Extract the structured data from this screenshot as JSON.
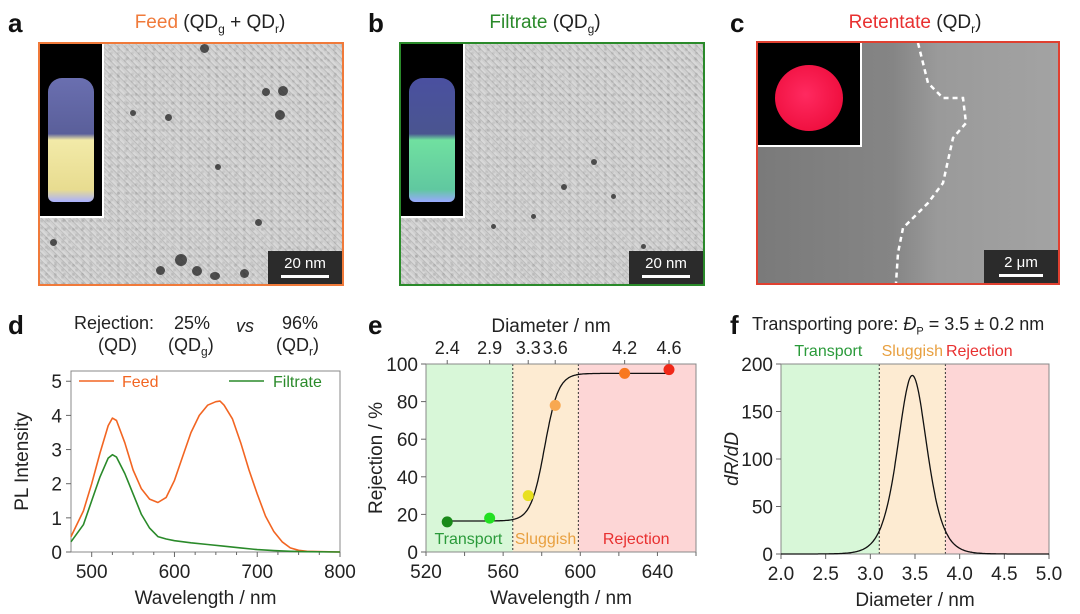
{
  "panels": {
    "a": {
      "letter": "a",
      "title_colored": "Feed",
      "title_rest_1": " (QD",
      "sub_1": "g",
      "title_rest_2": " + QD",
      "sub_2": "r",
      "title_rest_3": ")",
      "title_color": "#f07a3a",
      "frame_color": "#f07a3a",
      "scale_label": "20 nm",
      "inset": "vial-yellow"
    },
    "b": {
      "letter": "b",
      "title_colored": "Filtrate",
      "title_rest_1": " (QD",
      "sub_1": "g",
      "title_rest_3": ")",
      "title_color": "#2a8a2a",
      "frame_color": "#2a8a2a",
      "scale_label": "20 nm",
      "inset": "vial-green"
    },
    "c": {
      "letter": "c",
      "title_colored": "Retentate",
      "title_rest_1": " (QD",
      "sub_1": "r",
      "title_rest_3": ")",
      "title_color": "#e83030",
      "frame_color": "#e04030",
      "scale_label": "2 μm",
      "inset": "red-membrane"
    },
    "d": {
      "letter": "d",
      "header_row1": [
        "Rejection:",
        "25%",
        "vs",
        "96%"
      ],
      "header_row2": [
        "(QD)",
        "(QD",
        "g",
        ")",
        "(QD",
        "r",
        ")"
      ]
    },
    "e": {
      "letter": "e"
    },
    "f": {
      "letter": "f",
      "title": "Transporting pore: ",
      "title_symbol": "Đ",
      "title_sub": "P",
      "title_value": " = 3.5 ± 0.2 nm"
    }
  },
  "colors": {
    "feed": "#f26522",
    "filtrate": "#2a8a2a",
    "transport_bg": "#d8f7d8",
    "sluggish_bg": "#fdebd2",
    "rejection_bg": "#fdd6d6",
    "transport_text": "#2a9a3a",
    "sluggish_text": "#e8a040",
    "rejection_text": "#e83030"
  },
  "chart_data": [
    {
      "id": "d",
      "type": "line",
      "title": "Rejection: 25% (QDg) vs 96% (QDr)",
      "xlabel": "Wavelength / nm",
      "ylabel": "PL Intensity",
      "xlim": [
        475,
        800
      ],
      "ylim": [
        0,
        5.3
      ],
      "xticks": [
        500,
        600,
        700,
        800
      ],
      "yticks": [
        0,
        1,
        2,
        3,
        4,
        5
      ],
      "legend": "top",
      "series": [
        {
          "name": "Feed",
          "color": "#f26522",
          "x": [
            475,
            490,
            500,
            510,
            520,
            525,
            530,
            540,
            550,
            560,
            570,
            580,
            590,
            600,
            610,
            620,
            630,
            640,
            650,
            655,
            660,
            670,
            680,
            690,
            700,
            710,
            720,
            730,
            740,
            750,
            760,
            780,
            800
          ],
          "y": [
            0.45,
            1.2,
            2.0,
            2.9,
            3.7,
            3.92,
            3.85,
            3.2,
            2.4,
            1.85,
            1.55,
            1.45,
            1.6,
            2.1,
            2.8,
            3.5,
            4.0,
            4.3,
            4.4,
            4.42,
            4.3,
            3.9,
            3.2,
            2.4,
            1.7,
            1.05,
            0.6,
            0.3,
            0.12,
            0.05,
            0.02,
            0.01,
            0.0
          ]
        },
        {
          "name": "Filtrate",
          "color": "#2a8a2a",
          "x": [
            475,
            490,
            500,
            510,
            520,
            525,
            530,
            540,
            550,
            560,
            570,
            580,
            590,
            600,
            620,
            640,
            660,
            680,
            700,
            720,
            740,
            760,
            800
          ],
          "y": [
            0.3,
            0.8,
            1.5,
            2.2,
            2.75,
            2.85,
            2.78,
            2.3,
            1.7,
            1.1,
            0.7,
            0.45,
            0.38,
            0.33,
            0.27,
            0.22,
            0.17,
            0.12,
            0.07,
            0.04,
            0.02,
            0.01,
            0.0
          ]
        }
      ]
    },
    {
      "id": "e",
      "type": "scatter",
      "xlabel": "Wavelength / nm",
      "ylabel": "Rejection / %",
      "x2label": "Diameter / nm",
      "xlim": [
        520,
        660
      ],
      "ylim": [
        0,
        100
      ],
      "xticks": [
        520,
        560,
        600,
        640
      ],
      "yticks": [
        0,
        20,
        40,
        60,
        80,
        100
      ],
      "x2ticks": [
        {
          "x": 531,
          "label": "2.4"
        },
        {
          "x": 553,
          "label": "2.9"
        },
        {
          "x": 573,
          "label": "3.3"
        },
        {
          "x": 587,
          "label": "3.6"
        },
        {
          "x": 623,
          "label": "4.2"
        },
        {
          "x": 646,
          "label": "4.6"
        }
      ],
      "regions": [
        {
          "name": "Transport",
          "from": 520,
          "to": 565
        },
        {
          "name": "Sluggish",
          "from": 565,
          "to": 599
        },
        {
          "name": "Rejection",
          "from": 599,
          "to": 660
        }
      ],
      "points": [
        {
          "x": 531,
          "y": 16,
          "color": "#1a8a1a"
        },
        {
          "x": 553,
          "y": 18,
          "color": "#22e022"
        },
        {
          "x": 573,
          "y": 30,
          "color": "#e8e020"
        },
        {
          "x": 587,
          "y": 78,
          "color": "#f8a850"
        },
        {
          "x": 623,
          "y": 95,
          "color": "#f87820"
        },
        {
          "x": 646,
          "y": 97,
          "color": "#f02818"
        }
      ],
      "fit": {
        "type": "sigmoid",
        "bottom": 16.5,
        "top": 95,
        "x0": 581.5,
        "k": 0.28
      }
    },
    {
      "id": "f",
      "type": "line",
      "title": "Transporting pore: ĐP = 3.5 ± 0.2 nm",
      "xlabel": "Diameter / nm",
      "ylabel": "dR/dD",
      "xlim": [
        2.0,
        5.0
      ],
      "ylim": [
        0,
        200
      ],
      "xticks": [
        "2.0",
        "2.5",
        "3.0",
        "3.5",
        "4.0",
        "4.5",
        "5.0"
      ],
      "yticks": [
        0,
        50,
        100,
        150,
        200
      ],
      "regions": [
        {
          "name": "Transport",
          "from": 2.0,
          "to": 3.1
        },
        {
          "name": "Sluggish",
          "from": 3.1,
          "to": 3.84
        },
        {
          "name": "Rejection",
          "from": 3.84,
          "to": 5.0
        }
      ],
      "peak": {
        "x": 3.47,
        "y": 188,
        "width": 0.11
      }
    }
  ],
  "axis_labels": {
    "d_x": "Wavelength / nm",
    "d_y": "PL Intensity",
    "e_x": "Wavelength / nm",
    "e_y": "Rejection / %",
    "e_x2": "Diameter / nm",
    "f_x": "Diameter / nm",
    "f_y": "dR/dD"
  },
  "legend": {
    "feed": "Feed",
    "filtrate": "Filtrate"
  },
  "regions": {
    "transport": "Transport",
    "sluggish": "Sluggish",
    "rejection": "Rejection"
  }
}
